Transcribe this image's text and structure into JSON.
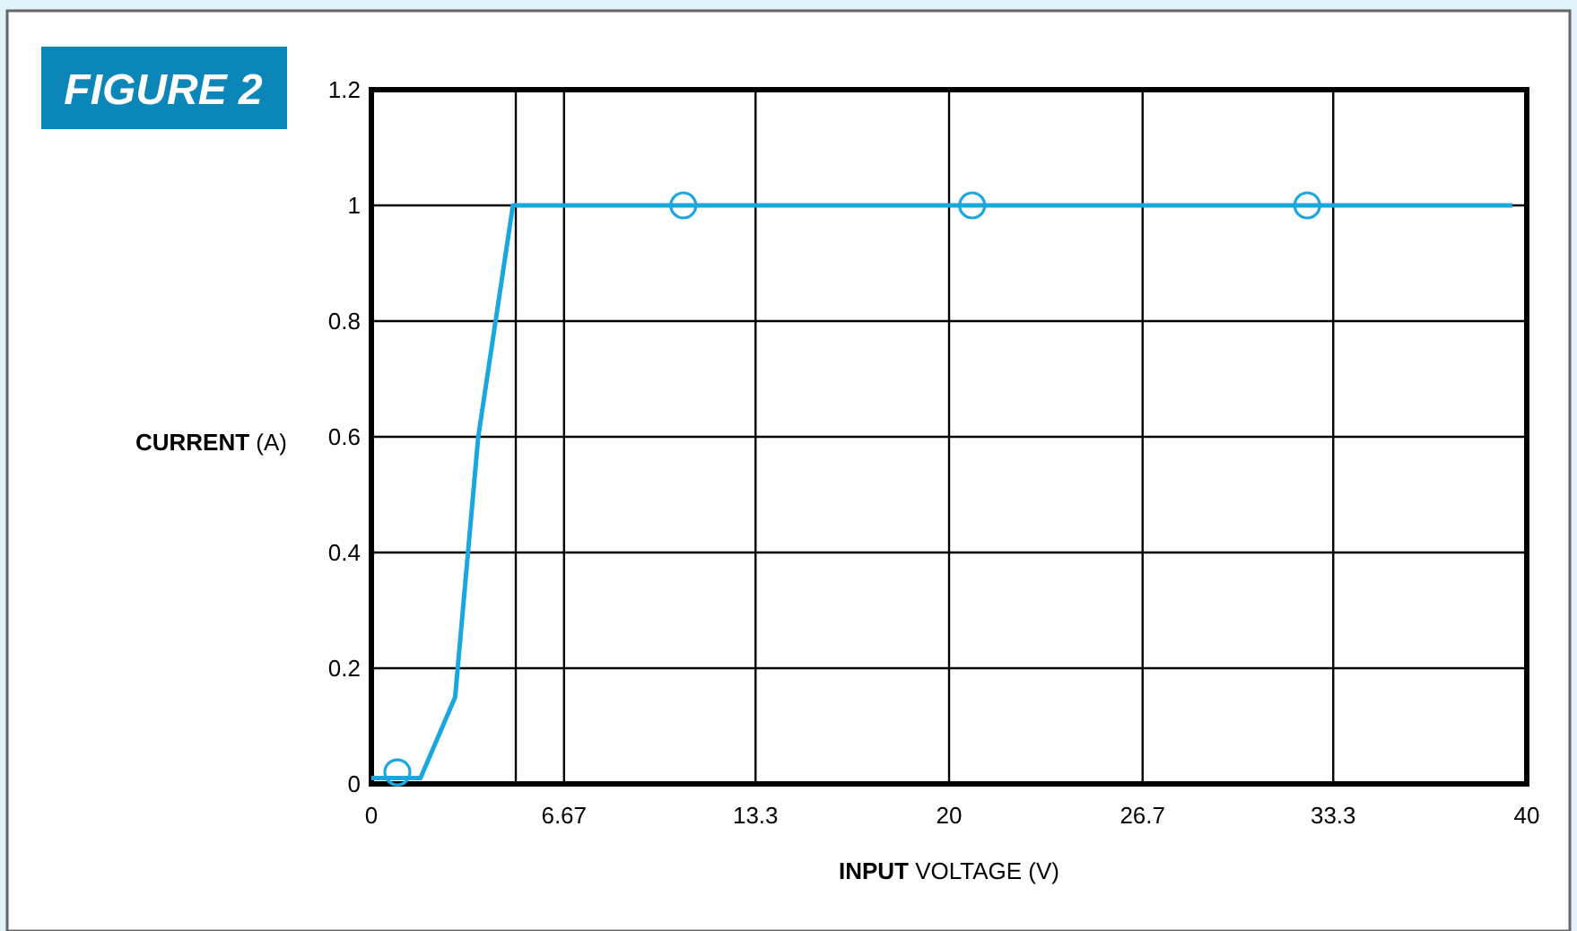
{
  "chart_data": {
    "type": "line",
    "title": "FIGURE 2",
    "xlabel": "INPUT VOLTAGE (V)",
    "ylabel": "CURRENT (A)",
    "xlim": [
      0,
      40
    ],
    "xticks": [
      0,
      6.67,
      13.3,
      20,
      26.7,
      33.3,
      40
    ],
    "ylim": [
      0,
      1.2
    ],
    "yticks": [
      0,
      0.2,
      0.4,
      0.6,
      0.8,
      1,
      1.2
    ],
    "grid": true,
    "ref_lines": [
      {
        "axis": "x",
        "value": 5,
        "color": "#000000"
      }
    ],
    "series": [
      {
        "color": "#1aa7e0",
        "marker": "none",
        "x": [
          0,
          1.7,
          2.9,
          3.7,
          4.9,
          39.5
        ],
        "values": [
          0.01,
          0.01,
          0.15,
          0.6,
          1,
          1
        ]
      },
      {
        "type": "scatter",
        "color": "#1aa7e0",
        "marker": "circle",
        "x": [
          0.9,
          10.8,
          20.8,
          32.4
        ],
        "values": [
          0.02,
          1,
          1,
          1
        ]
      }
    ]
  }
}
